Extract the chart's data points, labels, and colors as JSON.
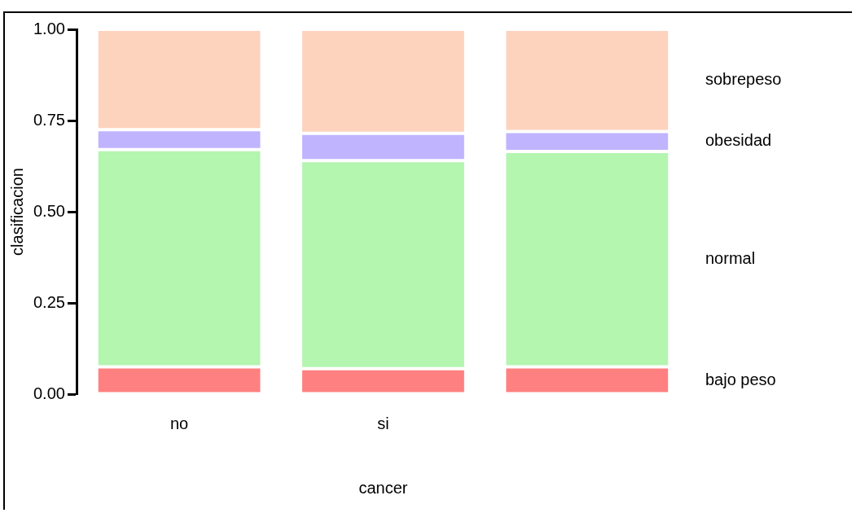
{
  "chart_data": {
    "type": "bar",
    "stacked": true,
    "xlabel": "cancer",
    "ylabel": "clasificacion",
    "categories": [
      "no",
      "si",
      null
    ],
    "series": [
      {
        "name": "bajo peso",
        "color": "#ff8080",
        "values": [
          0.075,
          0.07,
          0.075
        ]
      },
      {
        "name": "normal",
        "color": "#b4f5b0",
        "values": [
          0.595,
          0.57,
          0.59
        ]
      },
      {
        "name": "obesidad",
        "color": "#c0b4ff",
        "values": [
          0.055,
          0.075,
          0.055
        ]
      },
      {
        "name": "sobrepeso",
        "color": "#fdd3bd",
        "values": [
          0.275,
          0.285,
          0.28
        ]
      }
    ],
    "ylim": [
      0,
      1
    ],
    "yticks": [
      {
        "value": 0,
        "label": "0.00"
      },
      {
        "value": 0.25,
        "label": "0.25"
      },
      {
        "value": 0.5,
        "label": "0.50"
      },
      {
        "value": 0.75,
        "label": "0.75"
      },
      {
        "value": 1,
        "label": "1.00"
      }
    ],
    "grid": false,
    "legend": false
  }
}
